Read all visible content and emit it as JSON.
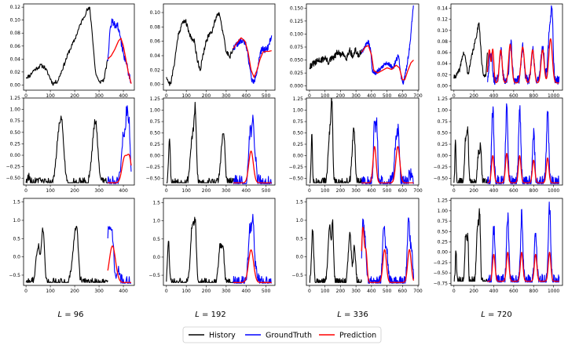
{
  "chart_data": {
    "type": "line",
    "legend": {
      "placement": "bottom-center",
      "entries": [
        {
          "name": "History",
          "color": "#000000"
        },
        {
          "name": "GroundTruth",
          "color": "#0000ff"
        },
        {
          "name": "Prediction",
          "color": "#ff0000"
        }
      ]
    },
    "columns": [
      {
        "label_var": "L",
        "label_eq": " = 96",
        "lookback": 96
      },
      {
        "label_var": "L",
        "label_eq": " = 192",
        "lookback": 192
      },
      {
        "label_var": "L",
        "label_eq": " = 336",
        "lookback": 336
      },
      {
        "label_var": "L",
        "label_eq": " = 720",
        "lookback": 720
      }
    ],
    "panels": [
      {
        "row": 0,
        "col": 0,
        "xlim": [
          -10,
          445
        ],
        "ylim": [
          -0.008,
          0.125
        ],
        "xticks": [
          0,
          100,
          200,
          300,
          400
        ],
        "yticks": [
          0.0,
          0.02,
          0.04,
          0.06,
          0.08,
          0.1,
          0.12
        ],
        "ytick_labels": [
          "0.00",
          "0.02",
          "0.04",
          "0.06",
          "0.08",
          "0.10",
          "0.12"
        ],
        "split": 336,
        "end": 432,
        "kind": "r0c0"
      },
      {
        "row": 0,
        "col": 1,
        "xlim": [
          -15,
          545
        ],
        "ylim": [
          -0.008,
          0.112
        ],
        "xticks": [
          0,
          100,
          200,
          300,
          400,
          500
        ],
        "yticks": [
          0.0,
          0.02,
          0.04,
          0.06,
          0.08,
          0.1
        ],
        "ytick_labels": [
          "0.00",
          "0.02",
          "0.04",
          "0.06",
          "0.08",
          "0.10"
        ],
        "split": 336,
        "end": 528,
        "kind": "r0c1"
      },
      {
        "row": 0,
        "col": 2,
        "xlim": [
          -20,
          705
        ],
        "ylim": [
          -0.008,
          0.158
        ],
        "xticks": [
          0,
          100,
          200,
          300,
          400,
          500,
          600,
          700
        ],
        "yticks": [
          0.0,
          0.025,
          0.05,
          0.075,
          0.1,
          0.125,
          0.15
        ],
        "ytick_labels": [
          "0.000",
          "0.025",
          "0.050",
          "0.075",
          "0.100",
          "0.125",
          "0.150"
        ],
        "split": 336,
        "end": 672,
        "kind": "r0c2"
      },
      {
        "row": 0,
        "col": 3,
        "xlim": [
          -30,
          1090
        ],
        "ylim": [
          -0.008,
          0.148
        ],
        "xticks": [
          0,
          200,
          400,
          600,
          800,
          1000
        ],
        "yticks": [
          0.0,
          0.02,
          0.04,
          0.06,
          0.08,
          0.1,
          0.12,
          0.14
        ],
        "ytick_labels": [
          "0.00",
          "0.02",
          "0.04",
          "0.06",
          "0.08",
          "0.10",
          "0.12",
          "0.14"
        ],
        "split": 336,
        "end": 1056,
        "kind": "r0c3"
      },
      {
        "row": 1,
        "col": 0,
        "xlim": [
          -10,
          445
        ],
        "ylim": [
          -0.65,
          1.25
        ],
        "xticks": [
          0,
          100,
          200,
          300,
          400
        ],
        "yticks": [
          -0.5,
          -0.25,
          0.0,
          0.25,
          0.5,
          0.75,
          1.0,
          1.25
        ],
        "ytick_labels": [
          "−0.50",
          "−0.25",
          "0.00",
          "0.25",
          "0.50",
          "0.75",
          "1.00",
          "1.25"
        ],
        "split": 336,
        "end": 432,
        "kind": "r1c0"
      },
      {
        "row": 1,
        "col": 1,
        "xlim": [
          -15,
          545
        ],
        "ylim": [
          -0.65,
          1.27
        ],
        "xticks": [
          0,
          100,
          200,
          300,
          400,
          500
        ],
        "yticks": [
          -0.5,
          -0.25,
          0.0,
          0.25,
          0.5,
          0.75,
          1.0,
          1.25
        ],
        "ytick_labels": [
          "−0.50",
          "−0.25",
          "0.00",
          "0.25",
          "0.50",
          "0.75",
          "1.00",
          "1.25"
        ],
        "split": 336,
        "end": 528,
        "kind": "r1c1"
      },
      {
        "row": 1,
        "col": 2,
        "xlim": [
          -20,
          705
        ],
        "ylim": [
          -0.65,
          1.27
        ],
        "xticks": [
          0,
          100,
          200,
          300,
          400,
          500,
          600,
          700
        ],
        "yticks": [
          -0.5,
          -0.25,
          0.0,
          0.25,
          0.5,
          0.75,
          1.0,
          1.25
        ],
        "ytick_labels": [
          "−0.50",
          "−0.25",
          "0.00",
          "0.25",
          "0.50",
          "0.75",
          "1.00",
          "1.25"
        ],
        "split": 336,
        "end": 672,
        "kind": "r1c2"
      },
      {
        "row": 1,
        "col": 3,
        "xlim": [
          -30,
          1090
        ],
        "ylim": [
          -0.65,
          1.27
        ],
        "xticks": [
          0,
          200,
          400,
          600,
          800,
          1000
        ],
        "yticks": [
          -0.5,
          -0.25,
          0.0,
          0.25,
          0.5,
          0.75,
          1.0,
          1.25
        ],
        "ytick_labels": [
          "−0.50",
          "−0.25",
          "0.00",
          "0.25",
          "0.50",
          "0.75",
          "1.00",
          "1.25"
        ],
        "split": 336,
        "end": 1056,
        "kind": "r1c3"
      },
      {
        "row": 2,
        "col": 0,
        "xlim": [
          -10,
          445
        ],
        "ylim": [
          -0.78,
          1.6
        ],
        "xticks": [
          0,
          100,
          200,
          300,
          400
        ],
        "yticks": [
          -0.5,
          0.0,
          0.5,
          1.0,
          1.5
        ],
        "ytick_labels": [
          "−0.5",
          "0.0",
          "0.5",
          "1.0",
          "1.5"
        ],
        "split": 336,
        "end": 432,
        "kind": "r2c0"
      },
      {
        "row": 2,
        "col": 1,
        "xlim": [
          -15,
          545
        ],
        "ylim": [
          -0.78,
          1.62
        ],
        "xticks": [
          0,
          100,
          200,
          300,
          400,
          500
        ],
        "yticks": [
          -0.5,
          0.0,
          0.5,
          1.0,
          1.5
        ],
        "ytick_labels": [
          "−0.5",
          "0.0",
          "0.5",
          "1.0",
          "1.5"
        ],
        "split": 336,
        "end": 528,
        "kind": "r2c1"
      },
      {
        "row": 2,
        "col": 2,
        "xlim": [
          -20,
          705
        ],
        "ylim": [
          -0.78,
          1.6
        ],
        "xticks": [
          0,
          100,
          200,
          300,
          400,
          500,
          600,
          700
        ],
        "yticks": [
          -0.5,
          0.0,
          0.5,
          1.0,
          1.5
        ],
        "ytick_labels": [
          "−0.5",
          "0.0",
          "0.5",
          "1.0",
          "1.5"
        ],
        "split": 336,
        "end": 672,
        "kind": "r2c2"
      },
      {
        "row": 2,
        "col": 3,
        "xlim": [
          -30,
          1090
        ],
        "ylim": [
          -0.8,
          1.3
        ],
        "xticks": [
          0,
          200,
          400,
          600,
          800,
          1000
        ],
        "yticks": [
          -0.75,
          -0.5,
          -0.25,
          0.0,
          0.25,
          0.5,
          0.75,
          1.0,
          1.25
        ],
        "ytick_labels": [
          "−0.75",
          "−0.50",
          "−0.25",
          "0.00",
          "0.25",
          "0.50",
          "0.75",
          "1.00",
          "1.25"
        ],
        "split": 336,
        "end": 1056,
        "kind": "r2c3"
      }
    ]
  }
}
